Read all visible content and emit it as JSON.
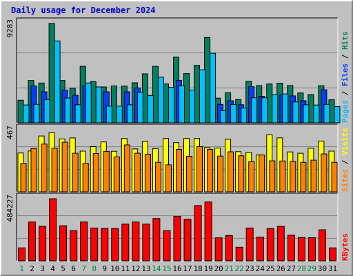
{
  "chart_data": {
    "type": "bar",
    "title": "Daily usage for December 2024",
    "categories": [
      "1",
      "2",
      "3",
      "4",
      "5",
      "6",
      "7",
      "8",
      "9",
      "10",
      "11",
      "12",
      "13",
      "14",
      "15",
      "16",
      "17",
      "18",
      "19",
      "20",
      "21",
      "22",
      "23",
      "24",
      "25",
      "26",
      "27",
      "28",
      "29",
      "30",
      "31"
    ],
    "weekend_days": [
      "1",
      "7",
      "8",
      "14",
      "15",
      "21",
      "22",
      "28",
      "29"
    ],
    "tick_colors": {
      "weekday": "#000000",
      "weekend": "#008040"
    },
    "panels": [
      {
        "name": "top",
        "ymax_label": "9283",
        "ymax": 9283,
        "right_label": [
          "Pages",
          "Files",
          "Hits"
        ],
        "right_label_colors": [
          "#00c0ff",
          "#0040ff",
          "#008060"
        ],
        "series": [
          {
            "name": "Hits",
            "color": "#008060",
            "values": [
              2110,
              3960,
              3720,
              9283,
              3960,
              3230,
              5280,
              3860,
              3350,
              3450,
              3430,
              3740,
              4580,
              5280,
              3630,
              6140,
              4600,
              5370,
              7970,
              2310,
              2810,
              2180,
              3880,
              3480,
              3630,
              3700,
              3480,
              2790,
              2640,
              3470,
              2150
            ]
          },
          {
            "name": "Files",
            "color": "#0040ff",
            "values": [
              0,
              3450,
              2900,
              0,
              3060,
              2580,
              3450,
              0,
              2900,
              0,
              2900,
              3260,
              0,
              0,
              0,
              3970,
              0,
              0,
              0,
              1720,
              2060,
              1690,
              3380,
              2480,
              0,
              2620,
              2520,
              2070,
              0,
              3090,
              0
            ]
          },
          {
            "name": "Pages",
            "color": "#00c0ff",
            "values": [
              1670,
              1720,
              2170,
              7650,
              2320,
              1690,
              3720,
              3350,
              1560,
              1560,
              1680,
              2850,
              2560,
              4270,
              3310,
              3450,
              3060,
              4960,
              6500,
              1140,
              1710,
              1380,
              2340,
              2340,
              2630,
              2700,
              1950,
              1680,
              1660,
              1720,
              1520
            ]
          }
        ]
      },
      {
        "name": "middle",
        "ymax_label": "467",
        "ymax": 467,
        "right_label": [
          "Sites",
          "Visits"
        ],
        "right_label_colors": [
          "#ff8000",
          "#ffff00"
        ],
        "series": [
          {
            "name": "Visits",
            "color": "#ffff00",
            "values": [
              292,
              307,
              420,
              445,
              398,
              405,
              306,
              340,
              375,
              305,
              401,
              323,
              379,
              325,
              401,
              370,
              401,
              401,
              333,
              329,
              395,
              302,
              296,
              277,
              429,
              406,
              300,
              290,
              328,
              382,
              306
            ]
          },
          {
            "name": "Sites",
            "color": "#ff8000",
            "values": [
              214,
              325,
              359,
              328,
              373,
              290,
              214,
              288,
              304,
              263,
              353,
              290,
              283,
              222,
              203,
              319,
              267,
              340,
              319,
              269,
              301,
              271,
              228,
              277,
              233,
              232,
              228,
              222,
              238,
              285,
              222
            ]
          }
        ]
      },
      {
        "name": "bottom",
        "ymax_label": "484227",
        "ymax": 484227,
        "right_label": [
          "KBytes"
        ],
        "right_label_colors": [
          "#ff0000"
        ],
        "series": [
          {
            "name": "KBytes",
            "color": "#ff0000",
            "values": [
              101000,
              303000,
              269000,
              484227,
              274000,
              235000,
              303000,
              256000,
              253000,
              253000,
              286000,
              303000,
              286000,
              330000,
              235000,
              346000,
              324000,
              431000,
              459000,
              179000,
              197000,
              106000,
              256000,
              185000,
              252000,
              269000,
              200000,
              182000,
              180000,
              242000,
              101000
            ]
          }
        ]
      }
    ]
  }
}
